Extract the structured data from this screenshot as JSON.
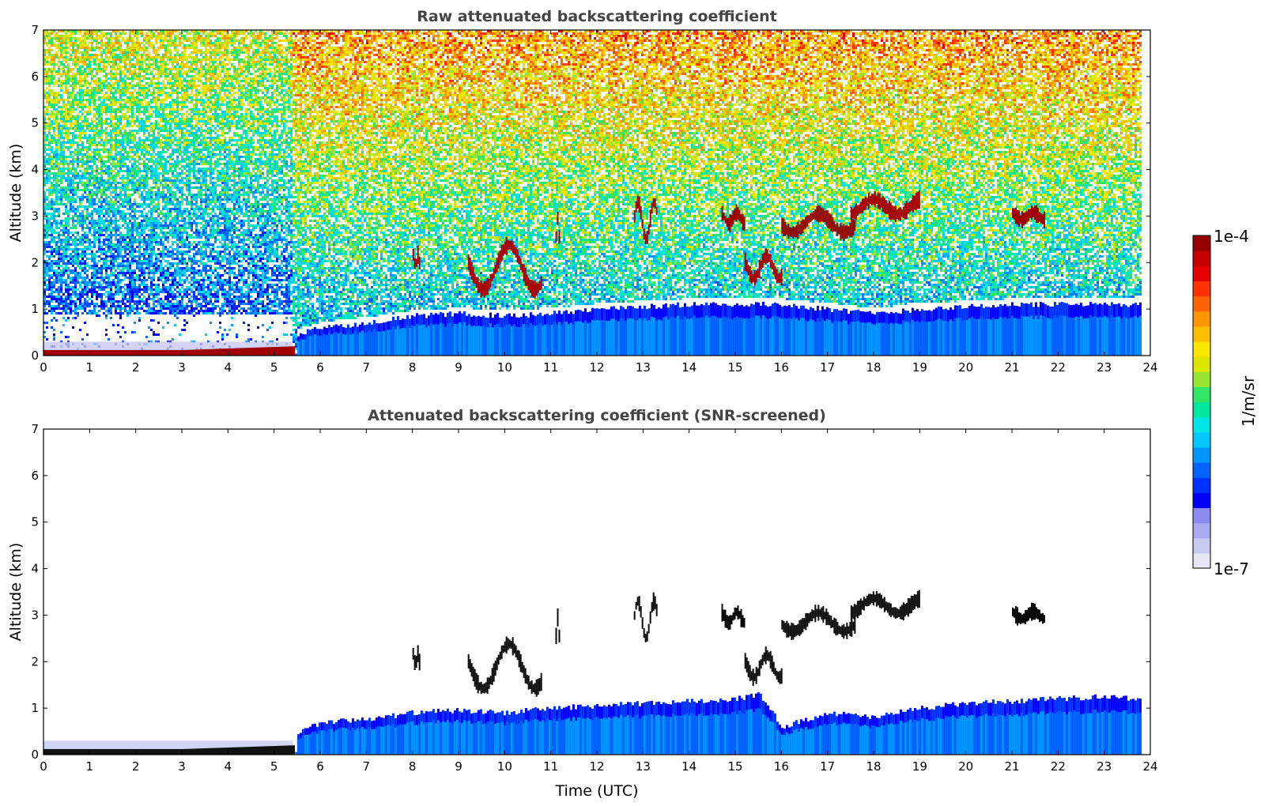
{
  "figure": {
    "xlabel": "Time (UTC)"
  },
  "colorbar": {
    "label": "1/m/sr",
    "max_label": "1e-4",
    "min_label": "1e-7",
    "colors": [
      "#e6e6f5",
      "#c8c8f0",
      "#aaaaf0",
      "#8c8cf0",
      "#0000ff",
      "#0032ff",
      "#0064ff",
      "#0096ff",
      "#00c8ff",
      "#00e6e6",
      "#00e6a0",
      "#32e664",
      "#96e632",
      "#dce600",
      "#ffe600",
      "#ffbe00",
      "#ff9600",
      "#ff6400",
      "#ff3200",
      "#e60000",
      "#c80000",
      "#960000"
    ]
  },
  "chart_data": [
    {
      "type": "heatmap",
      "title": "Raw attenuated backscattering coefficient",
      "xlabel": "",
      "ylabel": "Altitude (km)",
      "xlim": [
        0,
        24
      ],
      "ylim": [
        0,
        7
      ],
      "xticks": [
        0,
        1,
        2,
        3,
        4,
        5,
        6,
        7,
        8,
        9,
        10,
        11,
        12,
        13,
        14,
        15,
        16,
        17,
        18,
        19,
        20,
        21,
        22,
        23,
        24
      ],
      "yticks": [
        0,
        1,
        2,
        3,
        4,
        5,
        6,
        7
      ],
      "zlabel": "1/m/sr",
      "zlim": [
        "1e-7",
        "1e-4"
      ],
      "zscale": "log",
      "data_end_hour": 23.8,
      "features": {
        "surface_layer": [
          {
            "x": 0,
            "top": 0.12
          },
          {
            "x": 3,
            "top": 0.12
          },
          {
            "x": 5.4,
            "top": 0.2
          }
        ],
        "boundary_layer_top": [
          [
            5.5,
            0.45
          ],
          [
            6,
            0.6
          ],
          [
            7,
            0.7
          ],
          [
            8,
            0.85
          ],
          [
            9,
            0.9
          ],
          [
            10,
            0.85
          ],
          [
            11,
            0.9
          ],
          [
            12,
            1.0
          ],
          [
            13,
            1.05
          ],
          [
            14,
            1.1
          ],
          [
            15,
            1.1
          ],
          [
            16,
            1.1
          ],
          [
            17,
            1.0
          ],
          [
            18,
            0.9
          ],
          [
            19,
            1.0
          ],
          [
            20,
            1.05
          ],
          [
            21,
            1.1
          ],
          [
            22,
            1.1
          ],
          [
            23,
            1.1
          ],
          [
            23.8,
            1.1
          ]
        ],
        "clouds": [
          {
            "x": [
              8.0,
              8.15
            ],
            "alt": [
              1.9,
              2.2
            ]
          },
          {
            "x": [
              9.2,
              10.8
            ],
            "alt": [
              1.3,
              2.5
            ]
          },
          {
            "x": [
              11.1,
              11.2
            ],
            "alt": [
              2.5,
              3.0
            ]
          },
          {
            "x": [
              12.8,
              13.3
            ],
            "alt": [
              2.4,
              3.4
            ]
          },
          {
            "x": [
              14.7,
              15.2
            ],
            "alt": [
              2.8,
              3.1
            ]
          },
          {
            "x": [
              15.2,
              16.0
            ],
            "alt": [
              1.6,
              2.2
            ]
          },
          {
            "x": [
              16.0,
              17.6
            ],
            "alt": [
              2.6,
              3.1
            ]
          },
          {
            "x": [
              17.5,
              19.0
            ],
            "alt": [
              3.0,
              3.4
            ]
          },
          {
            "x": [
              21.0,
              21.7
            ],
            "alt": [
              2.9,
              3.1
            ]
          }
        ]
      }
    },
    {
      "type": "heatmap",
      "title": "Attenuated backscattering coefficient (SNR-screened)",
      "xlabel": "Time (UTC)",
      "ylabel": "Altitude (km)",
      "xlim": [
        0,
        24
      ],
      "ylim": [
        0,
        7
      ],
      "xticks": [
        0,
        1,
        2,
        3,
        4,
        5,
        6,
        7,
        8,
        9,
        10,
        11,
        12,
        13,
        14,
        15,
        16,
        17,
        18,
        19,
        20,
        21,
        22,
        23,
        24
      ],
      "yticks": [
        0,
        1,
        2,
        3,
        4,
        5,
        6,
        7
      ],
      "zlabel": "1/m/sr",
      "zlim": [
        "1e-7",
        "1e-4"
      ],
      "zscale": "log",
      "data_end_hour": 23.8,
      "features": {
        "surface_layer": [
          {
            "x": 0,
            "top": 0.12
          },
          {
            "x": 3,
            "top": 0.12
          },
          {
            "x": 5.4,
            "top": 0.2
          }
        ],
        "boundary_layer_top": [
          [
            5.5,
            0.45
          ],
          [
            6,
            0.7
          ],
          [
            7,
            0.75
          ],
          [
            8,
            0.9
          ],
          [
            9,
            0.95
          ],
          [
            10,
            0.9
          ],
          [
            11,
            1.0
          ],
          [
            12,
            1.05
          ],
          [
            13,
            1.1
          ],
          [
            14,
            1.15
          ],
          [
            15,
            1.2
          ],
          [
            15.5,
            1.3
          ],
          [
            16,
            0.6
          ],
          [
            17,
            0.9
          ],
          [
            18,
            0.8
          ],
          [
            19,
            1.0
          ],
          [
            20,
            1.1
          ],
          [
            21,
            1.15
          ],
          [
            22,
            1.2
          ],
          [
            23,
            1.25
          ],
          [
            23.8,
            1.2
          ]
        ],
        "clouds": [
          {
            "x": [
              8.0,
              8.15
            ],
            "alt": [
              1.9,
              2.2
            ]
          },
          {
            "x": [
              9.2,
              10.8
            ],
            "alt": [
              1.3,
              2.5
            ]
          },
          {
            "x": [
              11.1,
              11.2
            ],
            "alt": [
              2.5,
              3.0
            ]
          },
          {
            "x": [
              12.8,
              13.3
            ],
            "alt": [
              2.4,
              3.4
            ]
          },
          {
            "x": [
              14.7,
              15.2
            ],
            "alt": [
              2.8,
              3.1
            ]
          },
          {
            "x": [
              15.2,
              16.0
            ],
            "alt": [
              1.6,
              2.2
            ]
          },
          {
            "x": [
              16.0,
              17.6
            ],
            "alt": [
              2.6,
              3.1
            ]
          },
          {
            "x": [
              17.5,
              19.0
            ],
            "alt": [
              3.0,
              3.4
            ]
          },
          {
            "x": [
              21.0,
              21.7
            ],
            "alt": [
              2.9,
              3.1
            ]
          }
        ]
      }
    }
  ]
}
